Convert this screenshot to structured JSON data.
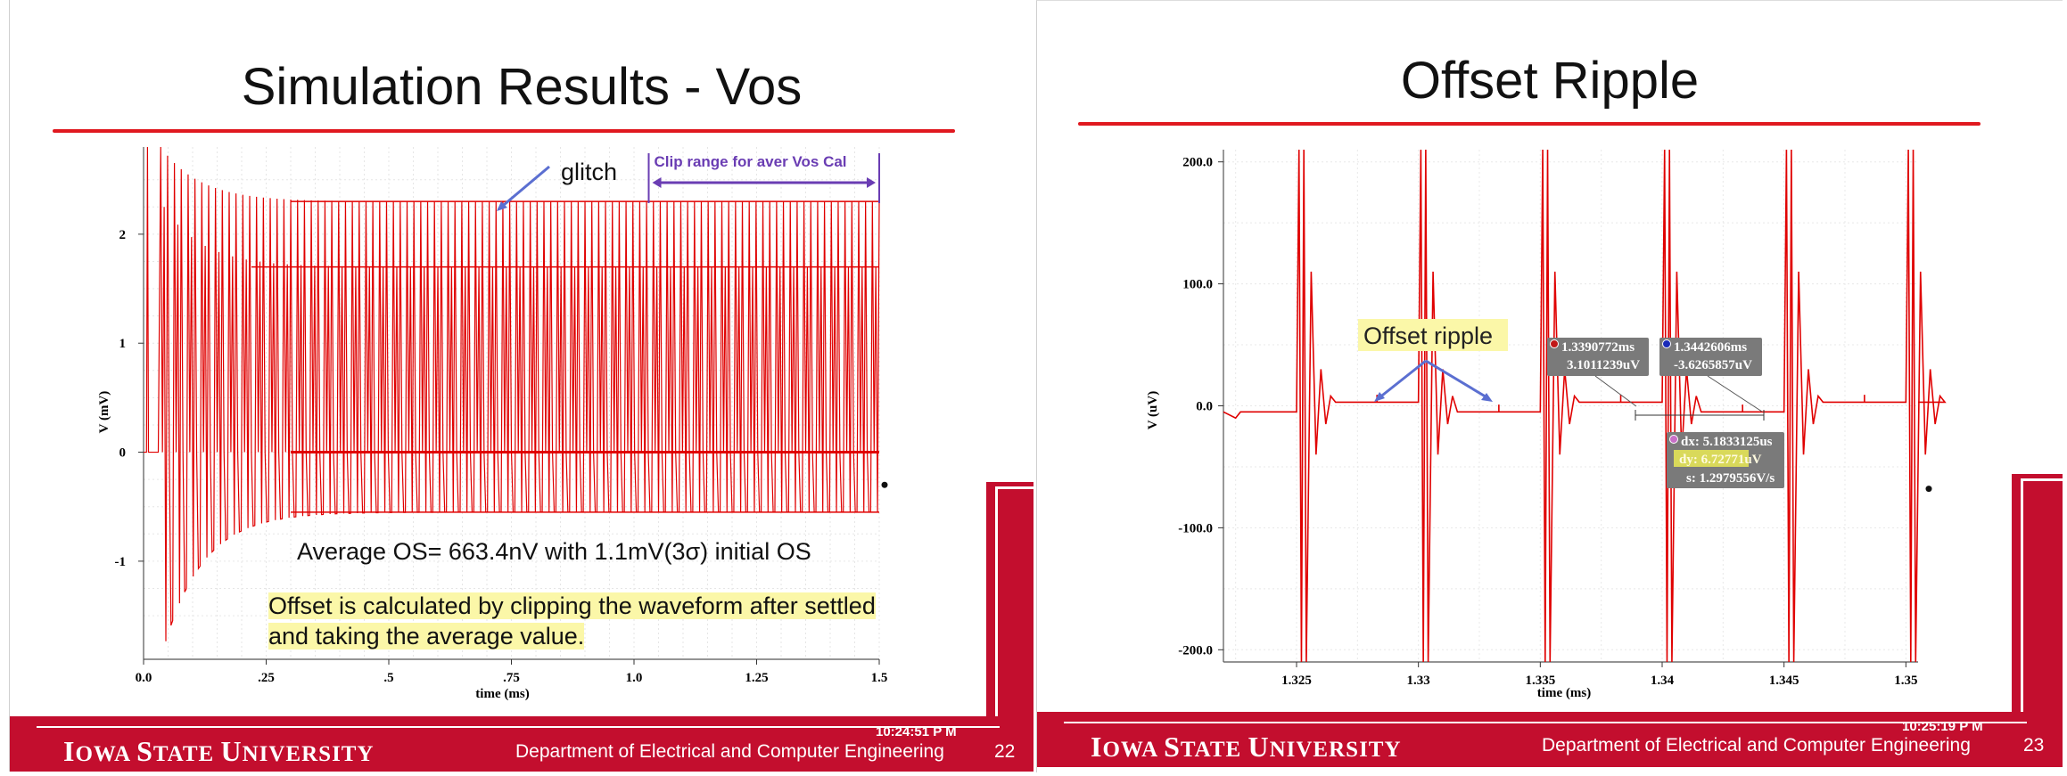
{
  "slides": [
    {
      "title": "Simulation Results - Vos",
      "glitch_label": "glitch",
      "clip_label": "Clip range for aver Vos Cal",
      "average_text": "Average OS= 663.4nV  with 1.1mV(3σ) initial OS",
      "offset_note_line1": "Offset is calculated by clipping the waveform after settled",
      "offset_note_line2": "and taking the average value.",
      "footer_university": {
        "initial1": "I",
        "rest1": "OWA ",
        "initial2": "S",
        "rest2": "TATE ",
        "initial3": "U",
        "rest3": "NIVERSITY"
      },
      "footer_department": "Department of Electrical and Computer Engineering",
      "page_number": "22",
      "timestamp": "10:24:51 P M"
    },
    {
      "title": "Offset Ripple",
      "offset_ripple_label": "Offset ripple",
      "footer_university": {
        "initial1": "I",
        "rest1": "OWA ",
        "initial2": "S",
        "rest2": "TATE ",
        "initial3": "U",
        "rest3": "NIVERSITY"
      },
      "footer_department": "Department of Electrical and Computer Engineering",
      "page_number": "23",
      "timestamp": "10:25:19 P M"
    }
  ],
  "chart_data": [
    {
      "type": "line",
      "title": "",
      "xlabel": "time (ms)",
      "ylabel": "V (mV)",
      "xlim": [
        0.0,
        1.5
      ],
      "ylim": [
        -1.9,
        2.8
      ],
      "x_ticks": [
        "0.0",
        ".25",
        ".5",
        ".75",
        "1.0",
        "1.25",
        "1.5"
      ],
      "x_tick_values": [
        0.0,
        0.25,
        0.5,
        0.75,
        1.0,
        1.25,
        1.5
      ],
      "y_ticks": [
        "2",
        "1",
        "0",
        "-1"
      ],
      "y_tick_values": [
        2,
        1,
        0,
        -1
      ],
      "grid": true,
      "series": [
        {
          "color": "#e00000",
          "envelope": {
            "start_ms": 0.0,
            "jump_ms": 0.01,
            "settle_ms": 0.35,
            "end_ms": 1.5,
            "initial_peak_mV": 2.8,
            "initial_trough_mV": -1.9,
            "settled_upper_mV": 2.3,
            "settled_mid_mV": 1.7,
            "settled_lower_mV": -0.55,
            "settled_baseline_mV": 0.0
          }
        }
      ],
      "annotations": {
        "clip_range_ms": [
          1.03,
          1.5
        ]
      }
    },
    {
      "type": "line",
      "title": "",
      "xlabel": "time (ms)",
      "ylabel": "V (uV)",
      "xlim": [
        1.322,
        1.3505
      ],
      "ylim": [
        -210,
        210
      ],
      "x_ticks": [
        "1.325",
        "1.33",
        "1.335",
        "1.34",
        "1.345",
        "1.35"
      ],
      "x_tick_values": [
        1.325,
        1.33,
        1.335,
        1.34,
        1.345,
        1.35
      ],
      "y_ticks": [
        "200.0",
        "100.0",
        "0.0",
        "-100.0",
        "-200.0"
      ],
      "y_tick_values": [
        200,
        100,
        0,
        -100,
        -200
      ],
      "grid": true,
      "series": [
        {
          "color": "#e00000",
          "spike_times_ms": [
            1.3252,
            1.3302,
            1.3352,
            1.3402,
            1.3452,
            1.3502
          ],
          "baseline_levels_uV": [
            -5,
            3,
            -5,
            3,
            -5,
            3,
            3
          ],
          "spike_amplitude_uV": 210
        }
      ],
      "markers": [
        {
          "id": "a",
          "label_line1": "1.3390772ms",
          "label_line2": "3.1011239uV"
        },
        {
          "id": "b",
          "label_line1": "1.3442606ms",
          "label_line2": "-3.6265857uV"
        }
      ],
      "delta": {
        "dx": "dx: 5.1833125us",
        "dy": "dy: 6.72771uV",
        "s": "s: 1.2979556V/s"
      }
    }
  ],
  "colors": {
    "brand_red": "#c30e2e",
    "rule_red": "#e0181f",
    "trace_red": "#e00000",
    "highlight_yellow": "#fbf7a8",
    "annotation_purple": "#6a3db3",
    "arrow_blue": "#5b6fd1"
  }
}
